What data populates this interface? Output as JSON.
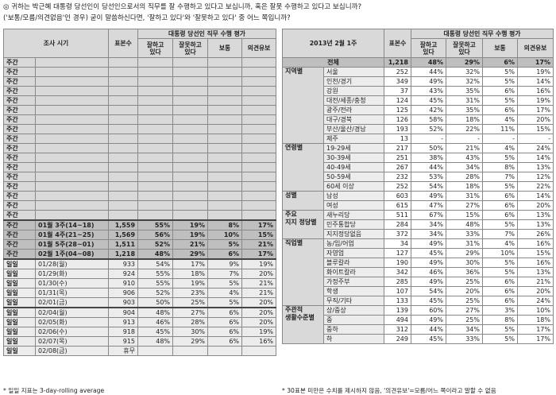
{
  "question": {
    "line1": "◎ 귀하는 박근혜 대통령 당선인이 당선인으로서의 직무를 잘 수행하고 있다고 보십니까, 혹은 잘못 수행하고 있다고 보십니까?",
    "line2": "('보통/모름/의견없음'인 경우) 굳이 말씀하신다면, '잘하고 있다'와 '잘못하고 있다' 중 어느 쪽입니까?"
  },
  "left_table": {
    "header_period": "조사 시기",
    "header_n": "표본수",
    "header_group": "대통령 당선인 직무 수행 평가",
    "cols": [
      "잘하고\n있다",
      "잘못하고\n있다",
      "보통",
      "의견유보"
    ],
    "empty_label": "주간",
    "empty_count": 17,
    "weekly": [
      {
        "type": "주간",
        "period": "01월 3주(14~18)",
        "n": "1,559",
        "good": "55%",
        "bad": "19%",
        "avg": "8%",
        "none": "17%"
      },
      {
        "type": "주간",
        "period": "01월 4주(21~25)",
        "n": "1,569",
        "good": "56%",
        "bad": "19%",
        "avg": "10%",
        "none": "15%"
      },
      {
        "type": "주간",
        "period": "01월 5주(28~01)",
        "n": "1,511",
        "good": "52%",
        "bad": "21%",
        "avg": "5%",
        "none": "21%"
      },
      {
        "type": "주간",
        "period": "02월 1주(04~08)",
        "n": "1,218",
        "good": "48%",
        "bad": "29%",
        "avg": "6%",
        "none": "17%"
      }
    ],
    "daily1": [
      {
        "type": "일일",
        "period": "01/28(월)",
        "n": "933",
        "good": "54%",
        "bad": "17%",
        "avg": "9%",
        "none": "19%"
      },
      {
        "type": "일일",
        "period": "01/29(화)",
        "n": "924",
        "good": "55%",
        "bad": "18%",
        "avg": "7%",
        "none": "20%"
      },
      {
        "type": "일일",
        "period": "01/30(수)",
        "n": "910",
        "good": "55%",
        "bad": "19%",
        "avg": "5%",
        "none": "21%"
      },
      {
        "type": "일일",
        "period": "01/31(목)",
        "n": "906",
        "good": "52%",
        "bad": "23%",
        "avg": "4%",
        "none": "21%"
      },
      {
        "type": "일일",
        "period": "02/01(금)",
        "n": "903",
        "good": "50%",
        "bad": "25%",
        "avg": "5%",
        "none": "20%"
      }
    ],
    "daily2": [
      {
        "type": "일일",
        "period": "02/04(월)",
        "n": "904",
        "good": "48%",
        "bad": "27%",
        "avg": "6%",
        "none": "20%"
      },
      {
        "type": "일일",
        "period": "02/05(화)",
        "n": "913",
        "good": "46%",
        "bad": "28%",
        "avg": "6%",
        "none": "20%"
      },
      {
        "type": "일일",
        "period": "02/06(수)",
        "n": "918",
        "good": "45%",
        "bad": "30%",
        "avg": "6%",
        "none": "19%"
      },
      {
        "type": "일일",
        "period": "02/07(목)",
        "n": "915",
        "good": "48%",
        "bad": "29%",
        "avg": "6%",
        "none": "16%"
      },
      {
        "type": "일일",
        "period": "02/08(금)",
        "n": "휴무",
        "good": "",
        "bad": "",
        "avg": "",
        "none": ""
      }
    ],
    "note": "* 일일 지표는 3-day-rolling average"
  },
  "right_table": {
    "header_period": "2013년 2월 1주",
    "header_n": "표본수",
    "header_group": "대통령 당선인 직무 수행 평가",
    "cols": [
      "잘하고\n있다",
      "잘못하고\n있다",
      "보통",
      "의견유보"
    ],
    "total": {
      "label": "전체",
      "n": "1,218",
      "good": "48%",
      "bad": "29%",
      "avg": "6%",
      "none": "17%"
    },
    "groups": [
      {
        "name": "지역별",
        "rows": [
          {
            "label": "서울",
            "n": "252",
            "good": "44%",
            "bad": "32%",
            "avg": "5%",
            "none": "19%"
          },
          {
            "label": "인천/경기",
            "n": "349",
            "good": "49%",
            "bad": "32%",
            "avg": "5%",
            "none": "14%"
          },
          {
            "label": "강원",
            "n": "37",
            "good": "43%",
            "bad": "35%",
            "avg": "6%",
            "none": "16%"
          },
          {
            "label": "대전/세종/충청",
            "n": "124",
            "good": "45%",
            "bad": "31%",
            "avg": "5%",
            "none": "19%"
          },
          {
            "label": "광주/전라",
            "n": "125",
            "good": "42%",
            "bad": "35%",
            "avg": "6%",
            "none": "17%"
          },
          {
            "label": "대구/경북",
            "n": "126",
            "good": "58%",
            "bad": "18%",
            "avg": "4%",
            "none": "20%"
          },
          {
            "label": "부산/울산/경남",
            "n": "193",
            "good": "52%",
            "bad": "22%",
            "avg": "11%",
            "none": "15%"
          },
          {
            "label": "제주",
            "n": "13",
            "good": "-",
            "bad": "-",
            "avg": "-",
            "none": "-"
          }
        ]
      },
      {
        "name": "연령별",
        "rows": [
          {
            "label": "19-29세",
            "n": "217",
            "good": "50%",
            "bad": "21%",
            "avg": "4%",
            "none": "24%"
          },
          {
            "label": "30-39세",
            "n": "251",
            "good": "38%",
            "bad": "43%",
            "avg": "5%",
            "none": "14%"
          },
          {
            "label": "40-49세",
            "n": "267",
            "good": "44%",
            "bad": "34%",
            "avg": "8%",
            "none": "13%"
          },
          {
            "label": "50-59세",
            "n": "232",
            "good": "53%",
            "bad": "28%",
            "avg": "7%",
            "none": "12%"
          },
          {
            "label": "60세 이상",
            "n": "252",
            "good": "54%",
            "bad": "18%",
            "avg": "5%",
            "none": "22%"
          }
        ]
      },
      {
        "name": "성별",
        "rows": [
          {
            "label": "남성",
            "n": "603",
            "good": "49%",
            "bad": "31%",
            "avg": "6%",
            "none": "14%"
          },
          {
            "label": "여성",
            "n": "615",
            "good": "47%",
            "bad": "27%",
            "avg": "6%",
            "none": "20%"
          }
        ]
      },
      {
        "name": "주요\n지지 정당별",
        "rows": [
          {
            "label": "새누리당",
            "n": "511",
            "good": "67%",
            "bad": "15%",
            "avg": "6%",
            "none": "13%"
          },
          {
            "label": "민주통합당",
            "n": "284",
            "good": "34%",
            "bad": "48%",
            "avg": "5%",
            "none": "13%"
          },
          {
            "label": "지지정당없음",
            "n": "372",
            "good": "34%",
            "bad": "33%",
            "avg": "7%",
            "none": "26%"
          }
        ]
      },
      {
        "name": "직업별",
        "rows": [
          {
            "label": "농/임/어업",
            "n": "34",
            "good": "49%",
            "bad": "31%",
            "avg": "4%",
            "none": "16%"
          },
          {
            "label": "자영업",
            "n": "127",
            "good": "45%",
            "bad": "29%",
            "avg": "10%",
            "none": "15%"
          },
          {
            "label": "블루칼라",
            "n": "190",
            "good": "49%",
            "bad": "30%",
            "avg": "5%",
            "none": "16%"
          },
          {
            "label": "화이트칼라",
            "n": "342",
            "good": "46%",
            "bad": "36%",
            "avg": "5%",
            "none": "13%"
          },
          {
            "label": "가정주부",
            "n": "285",
            "good": "49%",
            "bad": "25%",
            "avg": "6%",
            "none": "21%"
          },
          {
            "label": "학생",
            "n": "107",
            "good": "54%",
            "bad": "20%",
            "avg": "6%",
            "none": "20%"
          },
          {
            "label": "무직/기타",
            "n": "133",
            "good": "45%",
            "bad": "25%",
            "avg": "6%",
            "none": "24%"
          }
        ]
      },
      {
        "name": "주관적\n생활수준별",
        "rows": [
          {
            "label": "상/중상",
            "n": "139",
            "good": "60%",
            "bad": "27%",
            "avg": "3%",
            "none": "10%"
          },
          {
            "label": "중",
            "n": "494",
            "good": "49%",
            "bad": "25%",
            "avg": "8%",
            "none": "18%"
          },
          {
            "label": "중하",
            "n": "312",
            "good": "44%",
            "bad": "34%",
            "avg": "5%",
            "none": "17%"
          },
          {
            "label": "하",
            "n": "249",
            "good": "45%",
            "bad": "33%",
            "avg": "5%",
            "none": "17%"
          }
        ]
      }
    ],
    "note": "* 30표본 미만은 수치를 제시하지 않음, '의견유보'=모름/어느 쪽이라고 말할 수 없음"
  }
}
